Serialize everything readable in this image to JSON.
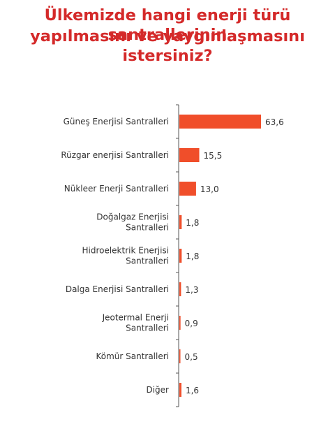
{
  "title_lines": [
    "Ülkemizde hangi enerji türü santrallerinin",
    "yapılmasını ve yaygınlaşmasını istersiniz?"
  ],
  "colors": {
    "title": "#d42a2a",
    "bar": "#f04e2a",
    "axis": "#555555",
    "text": "#333333"
  },
  "chart_data": {
    "type": "bar",
    "orientation": "horizontal",
    "title": "Ülkemizde hangi enerji türü santrallerinin yapılmasını ve yaygınlaşmasını istersiniz?",
    "categories": [
      [
        "Güneş Enerjisi Santralleri"
      ],
      [
        "Rüzgar enerjisi Santralleri"
      ],
      [
        "Nükleer Enerji Santralleri"
      ],
      [
        "Doğalgaz Enerjisi",
        "Santralleri"
      ],
      [
        "Hidroelektrik Enerjisi",
        "Santralleri"
      ],
      [
        "Dalga Enerjisi Santralleri"
      ],
      [
        "Jeotermal Enerji",
        "Santralleri"
      ],
      [
        "Kömür Santralleri"
      ],
      [
        "Diğer"
      ]
    ],
    "values": [
      63.6,
      15.5,
      13.0,
      1.8,
      1.8,
      1.3,
      0.9,
      0.5,
      1.6
    ],
    "value_labels": [
      "63,6",
      "15,5",
      "13,0",
      "1,8",
      "1,8",
      "1,3",
      "0,9",
      "0,5",
      "1,6"
    ],
    "xlim": [
      0,
      63.6
    ],
    "grid": false,
    "legend": "none"
  }
}
